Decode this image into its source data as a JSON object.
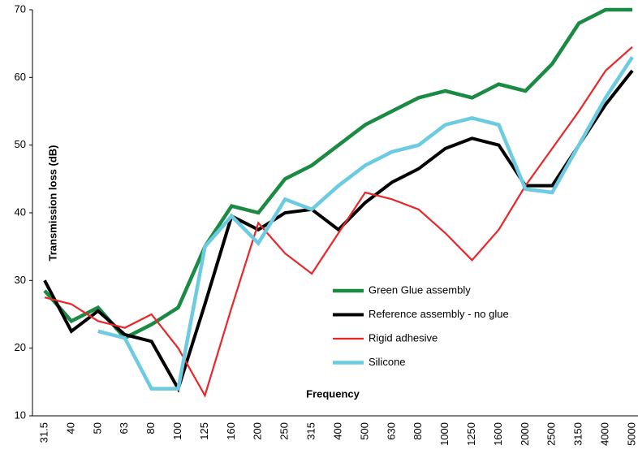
{
  "chart_data": {
    "type": "line",
    "y_label": "Transmission loss (dB)",
    "x_label": "Frequency",
    "categories": [
      "31.5",
      "40",
      "50",
      "63",
      "80",
      "100",
      "125",
      "160",
      "200",
      "250",
      "315",
      "400",
      "500",
      "630",
      "800",
      "1000",
      "1250",
      "1600",
      "2000",
      "2500",
      "3150",
      "4000",
      "5000"
    ],
    "series": [
      {
        "name": "Green Glue assembly",
        "color": "#1b8a43",
        "values": [
          28.5,
          24,
          26,
          21.5,
          23.5,
          26,
          35,
          41,
          40,
          45,
          47,
          50,
          53,
          55,
          57,
          58,
          57,
          59,
          58,
          62,
          68,
          70,
          70
        ]
      },
      {
        "name": "Reference assembly - no glue",
        "color": "#000000",
        "values": [
          30,
          22.5,
          25.5,
          22,
          21,
          14,
          26.5,
          39.5,
          37.5,
          40,
          40.5,
          37.5,
          41.5,
          44.5,
          46.5,
          49.5,
          51,
          50,
          44,
          44,
          50,
          56,
          61
        ]
      },
      {
        "name": "Rigid adhesive",
        "color": "#e8272a",
        "values": [
          27.5,
          26.5,
          24,
          23,
          25,
          20,
          13,
          26,
          38.5,
          34,
          31,
          37,
          43,
          42,
          40.5,
          37,
          33,
          37.5,
          44,
          49.5,
          55,
          61,
          64.5
        ]
      },
      {
        "name": "Silicone",
        "color": "#6ccbe0",
        "values": [
          null,
          null,
          22.5,
          21.5,
          14,
          14,
          35,
          39.5,
          35.5,
          42,
          40.5,
          44,
          47,
          49,
          50,
          53,
          54,
          53,
          43.5,
          43,
          50,
          57,
          63
        ]
      }
    ],
    "ylim": [
      10,
      70
    ],
    "yticks": [
      10,
      20,
      30,
      40,
      50,
      60,
      70
    ],
    "grid": false
  }
}
